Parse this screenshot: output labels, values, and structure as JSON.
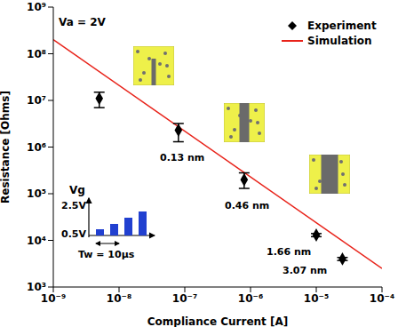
{
  "chart_data": {
    "type": "scatter",
    "x_label": "Compliance Current [A]",
    "y_label": "Resistance [Ohms]",
    "log": true,
    "grid": false,
    "legend": "top-right",
    "xlim": [
      1e-09,
      0.0001
    ],
    "ylim": [
      1000,
      1000000000
    ],
    "xticks": [
      {
        "value": 1e-09,
        "label": "10⁻⁹"
      },
      {
        "value": 1e-08,
        "label": "10⁻⁸"
      },
      {
        "value": 1e-07,
        "label": "10⁻⁷"
      },
      {
        "value": 1e-06,
        "label": "10⁻⁶"
      },
      {
        "value": 1e-05,
        "label": "10⁻⁵"
      },
      {
        "value": 0.0001,
        "label": "10⁻⁴"
      }
    ],
    "yticks": [
      {
        "value": 1000,
        "label": "10³"
      },
      {
        "value": 10000,
        "label": "10⁴"
      },
      {
        "value": 100000,
        "label": "10⁵"
      },
      {
        "value": 1000000,
        "label": "10⁶"
      },
      {
        "value": 10000000,
        "label": "10⁷"
      },
      {
        "value": 100000000,
        "label": "10⁸"
      },
      {
        "value": 1000000000,
        "label": "10⁹"
      }
    ],
    "series": [
      {
        "name": "Experiment",
        "type": "scatter",
        "marker": "diamond",
        "color": "#000000",
        "x": [
          5e-09,
          8e-08,
          8e-07,
          1e-05,
          2.5e-05
        ],
        "values": [
          11000000,
          2300000,
          200000,
          13000,
          4000
        ],
        "y_low": [
          7000000,
          1300000,
          130000,
          12000,
          3700
        ],
        "y_high": [
          15000000,
          3200000,
          280000,
          14000,
          4300
        ]
      },
      {
        "name": "Simulation",
        "type": "line",
        "line_style": "solid",
        "color": "#e8231a",
        "x": [
          1e-09,
          0.0001
        ],
        "values": [
          200000000,
          2500
        ]
      }
    ],
    "annotations": {
      "bias": "Va = 2V",
      "filaments": [
        "0.13 nm",
        "0.46 nm",
        "1.66 nm",
        "3.07 nm"
      ],
      "inset": {
        "y_label": "Vg",
        "levels": [
          "2.5V",
          "0.5V"
        ],
        "width_label": "Tw = 10µs"
      }
    }
  }
}
